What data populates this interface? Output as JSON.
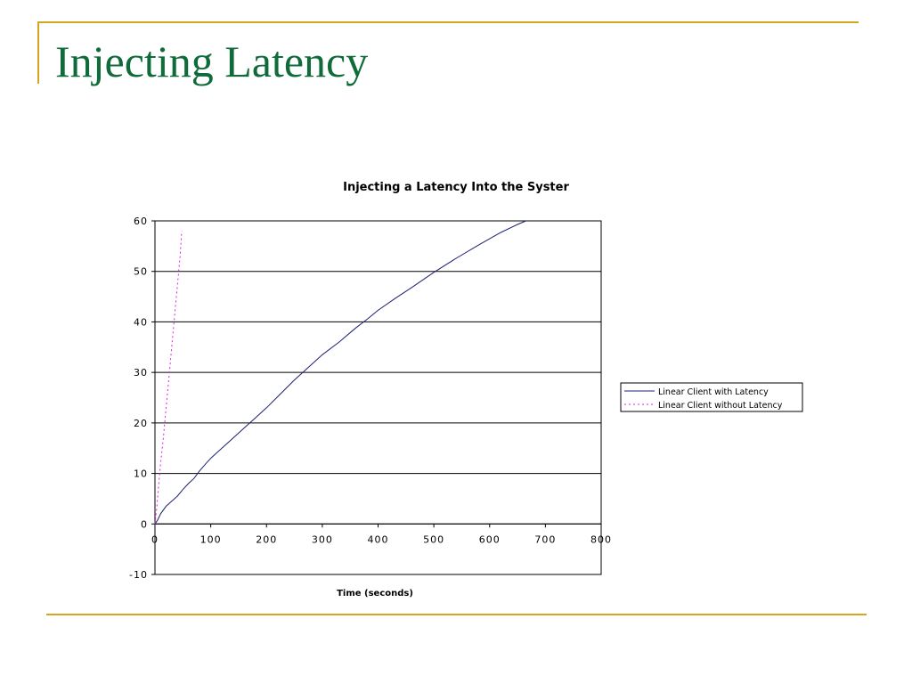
{
  "slide": {
    "title": "Injecting Latency",
    "accent_color": "#d9a521",
    "title_color": "#0f6b3a"
  },
  "chart_data": {
    "type": "line",
    "title": "Injecting a Latency Into the Syster",
    "xlabel": "Time (seconds)",
    "ylabel": "",
    "xlim": [
      0,
      800
    ],
    "ylim": [
      -10,
      60
    ],
    "x_ticks": [
      0,
      100,
      200,
      300,
      400,
      500,
      600,
      700,
      800
    ],
    "y_ticks": [
      -10,
      0,
      10,
      20,
      30,
      40,
      50,
      60
    ],
    "grid": "horizontal",
    "legend_position": "right",
    "series": [
      {
        "name": "Linear Client with Latency",
        "color": "#1c1f73",
        "style": "solid",
        "points": [
          [
            0,
            0
          ],
          [
            5,
            0.8
          ],
          [
            10,
            2
          ],
          [
            20,
            3.5
          ],
          [
            30,
            4.5
          ],
          [
            40,
            5.5
          ],
          [
            50,
            6.8
          ],
          [
            60,
            8
          ],
          [
            70,
            9
          ],
          [
            80,
            10.5
          ],
          [
            90,
            11.8
          ],
          [
            100,
            13
          ],
          [
            120,
            15
          ],
          [
            140,
            17
          ],
          [
            160,
            19
          ],
          [
            180,
            21
          ],
          [
            200,
            23
          ],
          [
            220,
            25.2
          ],
          [
            250,
            28.5
          ],
          [
            280,
            31.5
          ],
          [
            300,
            33.5
          ],
          [
            330,
            36
          ],
          [
            360,
            38.8
          ],
          [
            380,
            40.5
          ],
          [
            400,
            42.3
          ],
          [
            430,
            44.6
          ],
          [
            460,
            46.8
          ],
          [
            500,
            49.8
          ],
          [
            540,
            52.6
          ],
          [
            580,
            55.2
          ],
          [
            620,
            57.7
          ],
          [
            650,
            59.3
          ],
          [
            665,
            60
          ]
        ]
      },
      {
        "name": "Linear Client without Latency",
        "color": "#e020e0",
        "style": "dotted",
        "points": [
          [
            0,
            0
          ],
          [
            3,
            3
          ],
          [
            6,
            7
          ],
          [
            10,
            12
          ],
          [
            15,
            17
          ],
          [
            20,
            23
          ],
          [
            25,
            29
          ],
          [
            30,
            35
          ],
          [
            35,
            41
          ],
          [
            40,
            47
          ],
          [
            45,
            53
          ],
          [
            48,
            58
          ]
        ]
      }
    ]
  }
}
